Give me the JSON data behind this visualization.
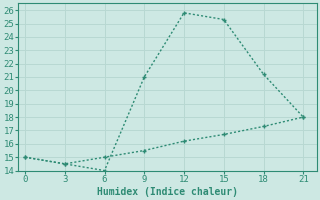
{
  "xlabel": "Humidex (Indice chaleur)",
  "line1_x": [
    0,
    3,
    6,
    9,
    12,
    15,
    18,
    21
  ],
  "line1_y": [
    15,
    14.5,
    14,
    21,
    25.8,
    25.3,
    21.2,
    18
  ],
  "line2_x": [
    0,
    3,
    6,
    9,
    12,
    15,
    18,
    21
  ],
  "line2_y": [
    15,
    14.5,
    15,
    15.5,
    16.2,
    16.7,
    17.3,
    18
  ],
  "line_color": "#2e8b74",
  "bg_color": "#cde8e3",
  "grid_color": "#b8d8d2",
  "xlim": [
    -0.5,
    22
  ],
  "ylim": [
    14,
    26.5
  ],
  "xticks": [
    0,
    3,
    6,
    9,
    12,
    15,
    18,
    21
  ],
  "yticks": [
    14,
    15,
    16,
    17,
    18,
    19,
    20,
    21,
    22,
    23,
    24,
    25,
    26
  ],
  "markersize": 3.5,
  "linewidth": 1.0
}
